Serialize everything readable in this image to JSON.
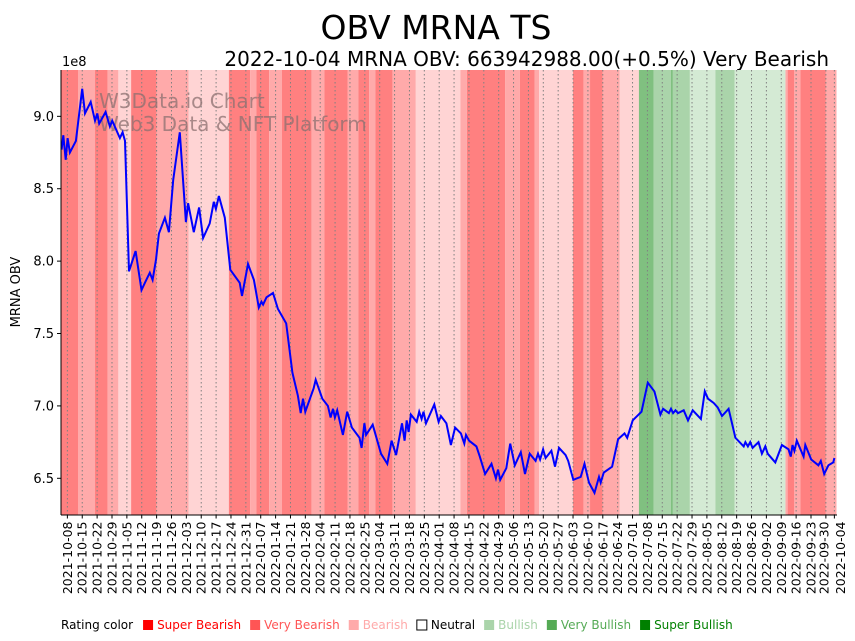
{
  "chart_data": {
    "type": "line",
    "title": "OBV MRNA TS",
    "subtitle": "2022-10-04 MRNA OBV: 663942988.00(+0.5%) Very Bearish",
    "ylabel": "MRNA OBV",
    "y_offset_label": "1e8",
    "ylim": [
      6.25,
      9.32
    ],
    "yticks": [
      6.5,
      7.0,
      7.5,
      8.0,
      8.5,
      9.0
    ],
    "ytick_labels": [
      "6.5",
      "7.0",
      "7.5",
      "8.0",
      "8.5",
      "9.0"
    ],
    "x_start": "2021-10-05",
    "x_end": "2022-10-05",
    "xtick_labels": [
      "2021-10-08",
      "2021-10-15",
      "2021-10-22",
      "2021-10-29",
      "2021-11-05",
      "2021-11-12",
      "2021-11-19",
      "2021-11-26",
      "2021-12-03",
      "2021-12-10",
      "2021-12-17",
      "2021-12-24",
      "2021-12-31",
      "2022-01-07",
      "2022-01-14",
      "2022-01-21",
      "2022-01-28",
      "2022-02-04",
      "2022-02-11",
      "2022-02-18",
      "2022-02-25",
      "2022-03-04",
      "2022-03-11",
      "2022-03-18",
      "2022-03-25",
      "2022-04-01",
      "2022-04-08",
      "2022-04-15",
      "2022-04-22",
      "2022-04-29",
      "2022-05-06",
      "2022-05-13",
      "2022-05-20",
      "2022-05-27",
      "2022-06-03",
      "2022-06-10",
      "2022-06-17",
      "2022-06-24",
      "2022-07-01",
      "2022-07-08",
      "2022-07-15",
      "2022-07-22",
      "2022-07-29",
      "2022-08-05",
      "2022-08-12",
      "2022-08-19",
      "2022-08-26",
      "2022-09-02",
      "2022-09-09",
      "2022-09-16",
      "2022-09-23",
      "2022-09-30",
      "2022-10-04"
    ],
    "grid": "vertical dotted at x ticks",
    "series": [
      {
        "name": "MRNA OBV",
        "color": "#0000ff",
        "x_unit": "days since 2021-10-05",
        "x_days": [
          0.3,
          1.1,
          2.2,
          3.1,
          4.2,
          7.0,
          10.0,
          11.3,
          14.0,
          16.0,
          17.1,
          18.0,
          21.0,
          23.0,
          24.1,
          27.7,
          29.0,
          30.1,
          32.0,
          35.1,
          37.9,
          39.5,
          41.8,
          43.1,
          44.7,
          46.1,
          48.9,
          50.8,
          52.8,
          55.9,
          58.8,
          59.8,
          62.5,
          65.0,
          66.9,
          70.0,
          71.9,
          72.9,
          74.3,
          77.1,
          79.7,
          84.1,
          85.2,
          88.0,
          90.8,
          93.1,
          94.3,
          95.1,
          96.7,
          99.8,
          102.1,
          106.0,
          108.9,
          111.5,
          112.8,
          113.9,
          115.0,
          118.9,
          119.9,
          123.0,
          125.6,
          126.9,
          128.0,
          128.9,
          130.0,
          132.7,
          134.7,
          136.9,
          140.5,
          141.5,
          142.8,
          143.6,
          146.7,
          150.6,
          153.6,
          155.6,
          157.7,
          160.5,
          161.7,
          162.7,
          163.6,
          164.7,
          167.4,
          168.6,
          169.7,
          170.6,
          171.8,
          175.7,
          177.7,
          178.8,
          181.4,
          183.5,
          185.5,
          188.2,
          189.8,
          190.6,
          192.1,
          195.5,
          197.1,
          199.6,
          202.6,
          204.7,
          205.7,
          206.7,
          209.6,
          211.4,
          213.6,
          216.4,
          218.4,
          220.6,
          223.4,
          224.5,
          225.5,
          226.9,
          228.1,
          230.8,
          232.5,
          234.4,
          237.5,
          238.7,
          241.1,
          244.6,
          246.4,
          248.5,
          251.1,
          253.2,
          254.0,
          255.5,
          259.4,
          262.2,
          265.2,
          266.5,
          269.1,
          273.2,
          276.2,
          279.3,
          282.1,
          283.4,
          286.1,
          287.1,
          288.1,
          289.2,
          290.4,
          293.1,
          295.1,
          297.3,
          301.2,
          303.0,
          304.5,
          307.2,
          309.1,
          311.1,
          314.2,
          317.4,
          321.3,
          322.1,
          323.3,
          324.4,
          325.5,
          328.3,
          329.9,
          331.5,
          332.6,
          336.2,
          339.3,
          342.4,
          343.5,
          344.3,
          345.2,
          346.3,
          349.5,
          350.3,
          353.1,
          356.5,
          357.6,
          359.2,
          361.2,
          363.5,
          364.0
        ],
        "values": [
          8.77,
          8.87,
          8.7,
          8.85,
          8.75,
          8.83,
          9.19,
          9.02,
          9.1,
          8.97,
          9.02,
          8.95,
          9.03,
          8.93,
          8.97,
          8.85,
          8.89,
          8.83,
          7.93,
          8.07,
          7.8,
          7.85,
          7.92,
          7.87,
          8.01,
          8.19,
          8.3,
          8.2,
          8.56,
          8.89,
          8.27,
          8.4,
          8.2,
          8.37,
          8.16,
          8.26,
          8.41,
          8.36,
          8.45,
          8.3,
          7.94,
          7.85,
          7.76,
          7.98,
          7.87,
          7.68,
          7.72,
          7.7,
          7.75,
          7.78,
          7.67,
          7.57,
          7.23,
          7.07,
          6.95,
          7.05,
          6.96,
          7.12,
          7.18,
          7.05,
          7.0,
          6.92,
          6.98,
          6.92,
          6.97,
          6.8,
          6.96,
          6.85,
          6.78,
          6.71,
          6.88,
          6.8,
          6.87,
          6.67,
          6.6,
          6.76,
          6.66,
          6.88,
          6.76,
          6.9,
          6.82,
          6.94,
          6.89,
          6.96,
          6.91,
          6.96,
          6.88,
          7.01,
          6.89,
          6.93,
          6.88,
          6.73,
          6.85,
          6.81,
          6.74,
          6.8,
          6.76,
          6.72,
          6.65,
          6.53,
          6.6,
          6.5,
          6.56,
          6.49,
          6.57,
          6.74,
          6.59,
          6.68,
          6.53,
          6.67,
          6.62,
          6.67,
          6.63,
          6.7,
          6.64,
          6.69,
          6.58,
          6.71,
          6.66,
          6.62,
          6.49,
          6.51,
          6.6,
          6.47,
          6.4,
          6.51,
          6.47,
          6.54,
          6.58,
          6.77,
          6.81,
          6.78,
          6.9,
          6.96,
          7.16,
          7.1,
          6.94,
          6.98,
          6.95,
          6.98,
          6.95,
          6.97,
          6.95,
          6.97,
          6.9,
          6.97,
          6.91,
          7.1,
          7.05,
          7.02,
          6.99,
          6.93,
          6.98,
          6.78,
          6.72,
          6.75,
          6.72,
          6.75,
          6.71,
          6.75,
          6.67,
          6.72,
          6.67,
          6.61,
          6.73,
          6.7,
          6.65,
          6.73,
          6.69,
          6.76,
          6.65,
          6.73,
          6.63,
          6.59,
          6.62,
          6.53,
          6.59,
          6.61,
          6.64
        ]
      }
    ],
    "rating_bands": [
      [
        "2021-10-05",
        "Super Bearish"
      ],
      [
        "2021-10-13",
        "Very Bearish"
      ],
      [
        "2021-10-21",
        "Super Bearish"
      ],
      [
        "2021-10-27",
        "Very Bearish"
      ],
      [
        "2021-11-01",
        "Bearish"
      ],
      [
        "2021-11-07",
        "Super Bearish"
      ],
      [
        "2021-11-19",
        "Very Bearish"
      ],
      [
        "2021-12-04",
        "Bearish"
      ],
      [
        "2021-12-23",
        "Super Bearish"
      ],
      [
        "2022-01-02",
        "Very Bearish"
      ],
      [
        "2022-01-05",
        "Super Bearish"
      ],
      [
        "2022-01-11",
        "Very Bearish"
      ],
      [
        "2022-01-17",
        "Super Bearish"
      ],
      [
        "2022-01-31",
        "Very Bearish"
      ],
      [
        "2022-02-06",
        "Super Bearish"
      ],
      [
        "2022-02-17",
        "Very Bearish"
      ],
      [
        "2022-02-22",
        "Super Bearish"
      ],
      [
        "2022-02-27",
        "Very Bearish"
      ],
      [
        "2022-03-02",
        "Super Bearish"
      ],
      [
        "2022-03-10",
        "Very Bearish"
      ],
      [
        "2022-03-21",
        "Bearish"
      ],
      [
        "2022-04-11",
        "Very Bearish"
      ],
      [
        "2022-04-14",
        "Super Bearish"
      ],
      [
        "2022-05-02",
        "Very Bearish"
      ],
      [
        "2022-05-09",
        "Super Bearish"
      ],
      [
        "2022-05-16",
        "Very Bearish"
      ],
      [
        "2022-05-18",
        "Bearish"
      ],
      [
        "2022-06-03",
        "Super Bearish"
      ],
      [
        "2022-06-08",
        "Very Bearish"
      ],
      [
        "2022-06-11",
        "Super Bearish"
      ],
      [
        "2022-06-17",
        "Very Bearish"
      ],
      [
        "2022-06-25",
        "Bearish"
      ],
      [
        "2022-07-04",
        "Super Bullish"
      ],
      [
        "2022-07-11",
        "Very Bullish"
      ],
      [
        "2022-07-19",
        "Super Bullish"
      ],
      [
        "2022-07-20",
        "Very Bullish"
      ],
      [
        "2022-07-28",
        "Bullish"
      ],
      [
        "2022-08-09",
        "Very Bullish"
      ],
      [
        "2022-08-18",
        "Bullish"
      ],
      [
        "2022-09-11",
        "Very Bearish"
      ],
      [
        "2022-09-12",
        "Super Bearish"
      ],
      [
        "2022-09-15",
        "Very Bearish"
      ],
      [
        "2022-09-18",
        "Super Bearish"
      ],
      [
        "2022-09-30",
        "Very Bearish"
      ]
    ],
    "legend": {
      "title": "Rating color",
      "placement": "bottom",
      "items": [
        {
          "label": "Super Bearish",
          "color": "#ff0000",
          "swatch": "#ff0000"
        },
        {
          "label": "Very Bearish",
          "color": "#ff5555",
          "swatch": "#ff5555"
        },
        {
          "label": "Bearish",
          "color": "#ffaaaa",
          "swatch": "#ffaaaa"
        },
        {
          "label": "Neutral",
          "color": "#000000",
          "swatch": "#ffffff"
        },
        {
          "label": "Bullish",
          "color": "#aad4aa",
          "swatch": "#aad4aa"
        },
        {
          "label": "Very Bullish",
          "color": "#55aa55",
          "swatch": "#55aa55"
        },
        {
          "label": "Super Bullish",
          "color": "#008000",
          "swatch": "#008000"
        }
      ]
    },
    "watermark": [
      "W3Data.io Chart",
      "Web3 Data & NFT Platform"
    ]
  }
}
